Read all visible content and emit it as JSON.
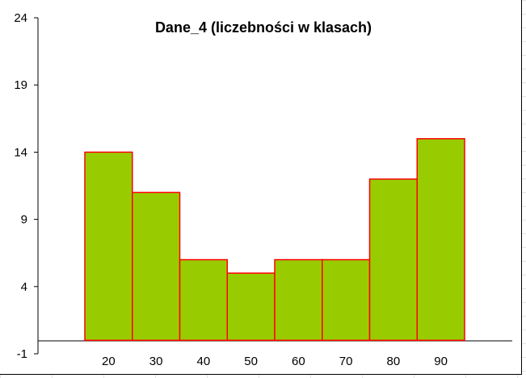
{
  "chart_data": {
    "type": "bar",
    "title": "Dane_4 (liczebności w klasach)",
    "categories": [
      "20",
      "30",
      "40",
      "50",
      "60",
      "70",
      "80",
      "90"
    ],
    "values": [
      14,
      11,
      6,
      5,
      6,
      6,
      12,
      15
    ],
    "yticks": [
      24,
      19,
      14,
      9,
      4,
      -1
    ],
    "ylim": [
      -1,
      24
    ],
    "baseline": 0,
    "xlabel": "",
    "ylabel": "",
    "grid": false,
    "bar_fill": "#99cc00",
    "bar_stroke": "#ff0000"
  }
}
